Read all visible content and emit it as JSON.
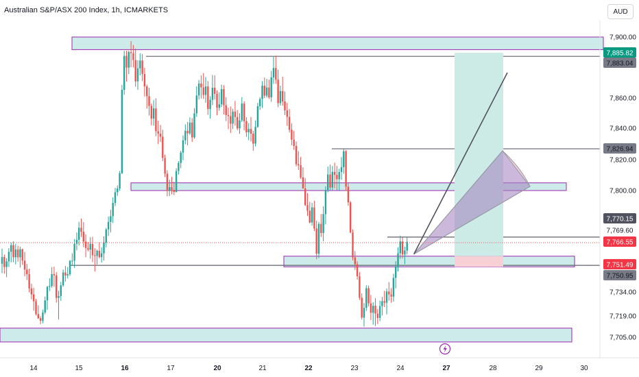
{
  "header": {
    "title": "Australian S&P/ASX 200 Index, 1h, ICMARKETS",
    "currency": "AUD"
  },
  "colors": {
    "up": "#26a69a",
    "down": "#ef5350",
    "zone_fill": "#cdebe8",
    "zone_border": "#9c27b0",
    "level_line": "#787b86",
    "target_fill": "#cdebe6",
    "stop_fill": "#f7d0d6"
  },
  "icons": {
    "lightning": "lightning-icon"
  },
  "chart_data": {
    "type": "candlestick",
    "title": "Australian S&P/ASX 200 Index, 1h, ICMARKETS",
    "y_ticks": [
      {
        "v": 7900,
        "label": "7,900.00"
      },
      {
        "v": 7860,
        "label": "7,860.00"
      },
      {
        "v": 7840,
        "label": "7,840.00"
      },
      {
        "v": 7820,
        "label": "7,820.00"
      },
      {
        "v": 7800,
        "label": "7,800.00"
      },
      {
        "v": 7734,
        "label": "7,734.00"
      },
      {
        "v": 7719,
        "label": "7,719.00"
      },
      {
        "v": 7705,
        "label": "7,705.00"
      }
    ],
    "x_ticks": [
      {
        "label": "14",
        "bold": false
      },
      {
        "label": "15",
        "bold": false
      },
      {
        "label": "16",
        "bold": true
      },
      {
        "label": "17",
        "bold": false
      },
      {
        "label": "20",
        "bold": true
      },
      {
        "label": "21",
        "bold": false
      },
      {
        "label": "22",
        "bold": true
      },
      {
        "label": "23",
        "bold": false
      },
      {
        "label": "24",
        "bold": false
      },
      {
        "label": "27",
        "bold": true
      },
      {
        "label": "28",
        "bold": false
      },
      {
        "label": "29",
        "bold": false
      },
      {
        "label": "30",
        "bold": false
      }
    ],
    "price_tags": [
      {
        "label": "7,885.82",
        "kind": "ask"
      },
      {
        "label": "7,883.04",
        "kind": "level"
      },
      {
        "label": "7,826.94",
        "kind": "level"
      },
      {
        "label": "7,770.15",
        "kind": "dark"
      },
      {
        "label": "7,769.60",
        "kind": "plain"
      },
      {
        "label": "7,766.55",
        "kind": "last"
      },
      {
        "label": "7,751.49",
        "kind": "bid"
      },
      {
        "label": "7,750.95",
        "kind": "level"
      }
    ],
    "horizontal_levels": [
      7883.04,
      7826.94,
      7769.6,
      7750.95
    ],
    "zones": [
      {
        "top": 7900,
        "bottom": 7888
      },
      {
        "top": 7805,
        "bottom": 7800
      },
      {
        "top": 7757,
        "bottom": 7750
      },
      {
        "top": 7711,
        "bottom": 7702
      }
    ],
    "trade": {
      "entry": 7757,
      "target": 7885,
      "stop": 7750
    },
    "candles": [
      [
        7752.0,
        7762.0,
        7746.0,
        7756.4
      ],
      [
        7756.4,
        7758.1,
        7745.7,
        7749.9
      ],
      [
        7749.9,
        7755.7,
        7743.4,
        7753.6
      ],
      [
        7753.6,
        7762.3,
        7749.9,
        7759.9
      ],
      [
        7759.9,
        7766.0,
        7752.9,
        7764.3
      ],
      [
        7764.3,
        7766.9,
        7753.0,
        7756.3
      ],
      [
        7756.3,
        7765.2,
        7751.6,
        7761.4
      ],
      [
        7761.4,
        7763.8,
        7753.4,
        7756.3
      ],
      [
        7756.3,
        7763.3,
        7749.5,
        7761.6
      ],
      [
        7761.6,
        7762.0,
        7751.3,
        7754.0
      ],
      [
        7754.0,
        7759.8,
        7744.0,
        7748.3
      ],
      [
        7748.3,
        7751.9,
        7741.6,
        7745.3
      ],
      [
        7745.3,
        7748.9,
        7733.8,
        7736.3
      ],
      [
        7736.3,
        7739.3,
        7729.4,
        7732.5
      ],
      [
        7732.5,
        7736.7,
        7722.3,
        7728.2
      ],
      [
        7728.2,
        7729.6,
        7719.3,
        7720.2
      ],
      [
        7720.2,
        7725.7,
        7717.1,
        7717.5
      ],
      [
        7717.5,
        7718.8,
        7713.6,
        7715.9
      ],
      [
        7715.9,
        7723.0,
        7714.2,
        7721.2
      ],
      [
        7721.2,
        7731.2,
        7720.0,
        7728.8
      ],
      [
        7728.8,
        7737.9,
        7722.8,
        7737.2
      ],
      [
        7737.2,
        7742.7,
        7734.6,
        7737.8
      ],
      [
        7737.8,
        7749.8,
        7736.7,
        7745.4
      ],
      [
        7745.4,
        7750.1,
        7737.3,
        7744.6
      ],
      [
        7744.6,
        7746.7,
        7727.4,
        7730.3
      ],
      [
        7730.3,
        7734.7,
        7716.7,
        7731.5
      ],
      [
        7731.5,
        7740.4,
        7728.5,
        7738.2
      ],
      [
        7738.2,
        7748.3,
        7737.3,
        7746.4
      ],
      [
        7746.4,
        7750.6,
        7740.6,
        7744.5
      ],
      [
        7744.5,
        7749.9,
        7742.6,
        7745.3
      ],
      [
        7745.3,
        7754.5,
        7744.2,
        7753.9
      ],
      [
        7753.9,
        7759.0,
        7751.3,
        7754.0
      ],
      [
        7754.0,
        7768.3,
        7749.3,
        7765.2
      ],
      [
        7765.2,
        7772.6,
        7760.8,
        7767.8
      ],
      [
        7767.8,
        7779.6,
        7764.0,
        7775.7
      ],
      [
        7775.7,
        7781.7,
        7769.7,
        7773.1
      ],
      [
        7773.1,
        7779.4,
        7763.0,
        7766.6
      ],
      [
        7766.6,
        7771.3,
        7756.4,
        7762.4
      ],
      [
        7762.4,
        7766.3,
        7760.2,
        7761.3
      ],
      [
        7761.3,
        7769.5,
        7755.4,
        7765.1
      ],
      [
        7765.1,
        7769.8,
        7753.1,
        7757.6
      ],
      [
        7757.6,
        7762.2,
        7747.0,
        7757.1
      ],
      [
        7757.1,
        7761.4,
        7751.6,
        7760.6
      ],
      [
        7760.6,
        7766.3,
        7755.5,
        7756.4
      ],
      [
        7756.4,
        7762.8,
        7752.8,
        7758.9
      ],
      [
        7758.9,
        7770.1,
        7754.1,
        7766.0
      ],
      [
        7766.0,
        7775.6,
        7762.8,
        7774.6
      ],
      [
        7774.6,
        7783.1,
        7770.3,
        7779.5
      ],
      [
        7779.5,
        7787.5,
        7772.6,
        7783.3
      ],
      [
        7783.3,
        7795.5,
        7778.8,
        7791.9
      ],
      [
        7791.9,
        7801.7,
        7789.8,
        7798.9
      ],
      [
        7798.9,
        7803.3,
        7796.5,
        7801.3
      ],
      [
        7801.3,
        7812.6,
        7799.8,
        7811.2
      ],
      [
        7811.2,
        7867.3,
        7810.8,
        7864.5
      ],
      [
        7864.5,
        7886.8,
        7861.8,
        7883.3
      ],
      [
        7883.3,
        7886.9,
        7869.1,
        7876.8
      ],
      [
        7876.8,
        7887.0,
        7873.2,
        7885.7
      ],
      [
        7885.7,
        7896.1,
        7877.0,
        7884.8
      ],
      [
        7884.8,
        7892.4,
        7876.9,
        7881.0
      ],
      [
        7881.0,
        7888.9,
        7866.2,
        7869.2
      ],
      [
        7869.2,
        7880.9,
        7864.6,
        7876.4
      ],
      [
        7876.4,
        7884.7,
        7872.5,
        7880.7
      ],
      [
        7880.7,
        7884.3,
        7869.3,
        7873.3
      ],
      [
        7873.3,
        7876.7,
        7860.8,
        7866.4
      ],
      [
        7866.4,
        7867.4,
        7852.9,
        7861.0
      ],
      [
        7861.0,
        7865.7,
        7848.4,
        7854.8
      ],
      [
        7854.8,
        7856.3,
        7841.9,
        7846.4
      ],
      [
        7846.4,
        7858.7,
        7841.7,
        7853.1
      ],
      [
        7853.1,
        7859.8,
        7834.9,
        7838.1
      ],
      [
        7838.1,
        7844.9,
        7829.9,
        7836.5
      ],
      [
        7836.5,
        7842.1,
        7831.3,
        7834.6
      ],
      [
        7834.6,
        7839.0,
        7819.1,
        7821.1
      ],
      [
        7821.1,
        7823.2,
        7808.7,
        7810.9
      ],
      [
        7810.9,
        7813.2,
        7796.2,
        7799.8
      ],
      [
        7799.8,
        7807.1,
        7796.4,
        7802.2
      ],
      [
        7802.2,
        7808.9,
        7797.5,
        7800.5
      ],
      [
        7800.5,
        7805.7,
        7797.0,
        7799.1
      ],
      [
        7799.1,
        7814.5,
        7798.7,
        7812.7
      ],
      [
        7812.7,
        7819.1,
        7810.4,
        7817.9
      ],
      [
        7817.9,
        7825.7,
        7814.5,
        7824.5
      ],
      [
        7824.5,
        7835.5,
        7819.7,
        7832.3
      ],
      [
        7832.3,
        7842.6,
        7829.8,
        7838.3
      ],
      [
        7838.3,
        7844.1,
        7829.1,
        7836.7
      ],
      [
        7836.7,
        7847.2,
        7835.7,
        7843.7
      ],
      [
        7843.7,
        7846.7,
        7831.3,
        7834.1
      ],
      [
        7834.1,
        7853.3,
        7833.3,
        7849.8
      ],
      [
        7849.8,
        7866.5,
        7847.5,
        7861.4
      ],
      [
        7861.4,
        7870.0,
        7859.0,
        7868.0
      ],
      [
        7868.0,
        7872.5,
        7859.7,
        7865.9
      ],
      [
        7865.9,
        7873.8,
        7859.4,
        7861.7
      ],
      [
        7861.7,
        7871.6,
        7856.8,
        7866.4
      ],
      [
        7866.4,
        7869.4,
        7848.8,
        7852.7
      ],
      [
        7852.7,
        7861.0,
        7846.3,
        7858.8
      ],
      [
        7858.8,
        7872.7,
        7855.3,
        7865.7
      ],
      [
        7865.7,
        7872.6,
        7859.1,
        7862.3
      ],
      [
        7862.3,
        7864.2,
        7848.5,
        7853.5
      ],
      [
        7853.5,
        7863.1,
        7851.6,
        7855.8
      ],
      [
        7855.8,
        7867.4,
        7853.9,
        7864.9
      ],
      [
        7864.9,
        7867.1,
        7849.1,
        7855.2
      ],
      [
        7855.2,
        7860.5,
        7844.7,
        7848.7
      ],
      [
        7848.7,
        7853.6,
        7839.4,
        7848.0
      ],
      [
        7848.0,
        7854.4,
        7837.0,
        7843.0
      ],
      [
        7843.0,
        7852.8,
        7839.4,
        7851.0
      ],
      [
        7851.0,
        7858.1,
        7841.7,
        7847.4
      ],
      [
        7847.4,
        7852.0,
        7838.7,
        7839.9
      ],
      [
        7839.9,
        7849.9,
        7836.4,
        7845.2
      ],
      [
        7845.2,
        7860.5,
        7844.1,
        7856.3
      ],
      [
        7856.3,
        7857.9,
        7838.6,
        7844.6
      ],
      [
        7844.6,
        7847.2,
        7834.5,
        7837.4
      ],
      [
        7837.4,
        7843.3,
        7832.4,
        7839.5
      ],
      [
        7839.5,
        7847.5,
        7831.6,
        7836.5
      ],
      [
        7836.5,
        7838.3,
        7825.6,
        7830.2
      ],
      [
        7830.2,
        7845.2,
        7828.4,
        7840.9
      ],
      [
        7840.9,
        7856.8,
        7840.2,
        7854.6
      ],
      [
        7854.6,
        7860.5,
        7852.1,
        7859.3
      ],
      [
        7859.3,
        7869.3,
        7853.4,
        7866.8
      ],
      [
        7866.8,
        7871.3,
        7859.9,
        7861.3
      ],
      [
        7861.3,
        7870.6,
        7860.2,
        7865.8
      ],
      [
        7865.8,
        7870.2,
        7859.4,
        7860.4
      ],
      [
        7860.4,
        7875.0,
        7857.5,
        7871.4
      ],
      [
        7871.4,
        7883.3,
        7867.8,
        7876.6
      ],
      [
        7876.6,
        7883.4,
        7867.8,
        7870.1
      ],
      [
        7870.1,
        7875.7,
        7853.9,
        7856.6
      ],
      [
        7856.6,
        7866.8,
        7855.0,
        7863.8
      ],
      [
        7863.8,
        7871.8,
        7855.0,
        7857.7
      ],
      [
        7857.7,
        7863.6,
        7848.7,
        7851.8
      ],
      [
        7851.8,
        7856.7,
        7841.6,
        7847.5
      ],
      [
        7847.5,
        7852.7,
        7837.3,
        7839.0
      ],
      [
        7839.0,
        7843.3,
        7829.2,
        7832.7
      ],
      [
        7832.7,
        7838.2,
        7826.2,
        7828.7
      ],
      [
        7828.7,
        7831.6,
        7815.6,
        7817.1
      ],
      [
        7817.1,
        7825.4,
        7813.3,
        7816.4
      ],
      [
        7816.4,
        7821.8,
        7807.5,
        7808.5
      ],
      [
        7808.5,
        7815.1,
        7801.2,
        7801.4
      ],
      [
        7801.4,
        7808.1,
        7789.8,
        7790.5
      ],
      [
        7790.5,
        7798.4,
        7783.4,
        7786.8
      ],
      [
        7786.8,
        7792.6,
        7778.6,
        7779.1
      ],
      [
        7779.1,
        7792.0,
        7777.1,
        7789.0
      ],
      [
        7789.0,
        7793.3,
        7773.6,
        7775.2
      ],
      [
        7775.2,
        7780.4,
        7755.0,
        7758.6
      ],
      [
        7758.6,
        7779.5,
        7755.8,
        7778.2
      ],
      [
        7778.2,
        7784.6,
        7769.7,
        7772.3
      ],
      [
        7772.3,
        7789.7,
        7766.8,
        7784.6
      ],
      [
        7784.6,
        7802.7,
        7778.0,
        7800.4
      ],
      [
        7800.4,
        7815.5,
        7798.8,
        7810.4
      ],
      [
        7810.4,
        7816.8,
        7800.0,
        7801.9
      ],
      [
        7801.9,
        7816.0,
        7800.2,
        7812.1
      ],
      [
        7812.1,
        7818.1,
        7801.4,
        7810.2
      ],
      [
        7810.2,
        7815.9,
        7800.2,
        7807.3
      ],
      [
        7807.3,
        7814.1,
        7800.2,
        7812.0
      ],
      [
        7812.0,
        7821.7,
        7807.0,
        7815.2
      ],
      [
        7815.2,
        7826.7,
        7810.9,
        7825.4
      ],
      [
        7825.4,
        7826.2,
        7799.8,
        7802.5
      ],
      [
        7802.5,
        7804.8,
        7790.0,
        7792.3
      ],
      [
        7792.3,
        7793.1,
        7772.1,
        7772.6
      ],
      [
        7772.6,
        7774.6,
        7754.3,
        7756.2
      ],
      [
        7756.2,
        7760.4,
        7748.1,
        7751.7
      ],
      [
        7751.7,
        7753.6,
        7741.8,
        7744.0
      ],
      [
        7744.0,
        7746.8,
        7729.0,
        7730.4
      ],
      [
        7730.4,
        7733.1,
        7716.6,
        7718.0
      ],
      [
        7718.0,
        7727.2,
        7712.0,
        7724.1
      ],
      [
        7724.1,
        7738.3,
        7722.2,
        7736.4
      ],
      [
        7736.4,
        7738.1,
        7725.0,
        7726.9
      ],
      [
        7726.9,
        7732.1,
        7716.3,
        7721.0
      ],
      [
        7721.0,
        7727.6,
        7713.3,
        7725.4
      ],
      [
        7725.4,
        7730.1,
        7712.4,
        7720.5
      ],
      [
        7720.5,
        7723.4,
        7713.7,
        7717.7
      ],
      [
        7717.7,
        7728.6,
        7715.6,
        7725.2
      ],
      [
        7725.2,
        7731.0,
        7719.3,
        7728.3
      ],
      [
        7728.3,
        7734.7,
        7724.6,
        7727.3
      ],
      [
        7727.3,
        7736.3,
        7720.0,
        7734.3
      ],
      [
        7734.3,
        7740.3,
        7728.6,
        7732.5
      ],
      [
        7732.5,
        7736.5,
        7727.3,
        7731.1
      ],
      [
        7731.1,
        7745.6,
        7728.0,
        7743.0
      ],
      [
        7743.0,
        7753.7,
        7736.3,
        7750.3
      ],
      [
        7750.3,
        7762.9,
        7747.0,
        7758.9
      ],
      [
        7758.9,
        7770.6,
        7755.3,
        7766.7
      ],
      [
        7766.7,
        7769.3,
        7755.6,
        7758.1
      ],
      [
        7758.1,
        7763.3,
        7751.8,
        7760.7
      ],
      [
        7760.7,
        7769.5,
        7758.1,
        7766.5
      ]
    ]
  }
}
